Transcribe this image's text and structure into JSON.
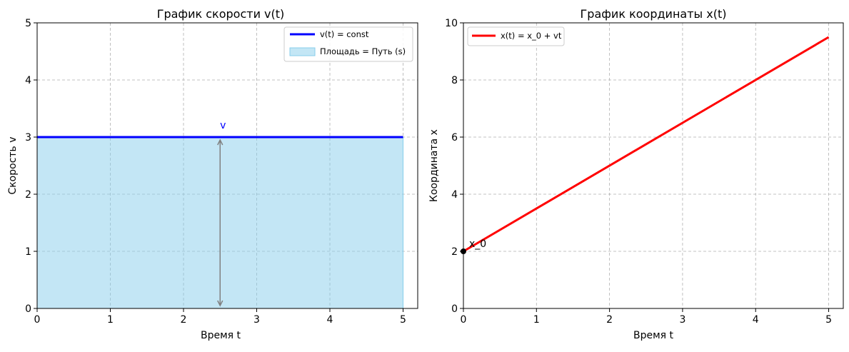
{
  "chart_data": [
    {
      "type": "line",
      "title": "График скорости v(t)",
      "xlabel": "Время t",
      "ylabel": "Скорость v",
      "xlim": [
        0,
        5.2
      ],
      "ylim": [
        0,
        5
      ],
      "xticks": [
        "0",
        "1",
        "2",
        "3",
        "4",
        "5"
      ],
      "yticks": [
        "0",
        "1",
        "2",
        "3",
        "4",
        "5"
      ],
      "grid": true,
      "legend_position": "top-right",
      "series": [
        {
          "name": "v(t) = const",
          "x": [
            0,
            5
          ],
          "y": [
            3,
            3
          ],
          "color": "#0000ff"
        }
      ],
      "area": {
        "name": "Площадь = Путь (s)",
        "x": [
          0,
          5
        ],
        "y": [
          3,
          3
        ],
        "color": "#87ceeb"
      },
      "annotations": [
        {
          "text": "v",
          "x": 2.5,
          "y": 3.2,
          "color": "#0000ff"
        },
        {
          "type": "double-arrow",
          "x": 2.5,
          "y_from": 0,
          "y_to": 3,
          "color": "#808080"
        }
      ]
    },
    {
      "type": "line",
      "title": "График координаты x(t)",
      "xlabel": "Время t",
      "ylabel": "Координата x",
      "xlim": [
        0,
        5.2
      ],
      "ylim": [
        0,
        10
      ],
      "xticks": [
        "0",
        "1",
        "2",
        "3",
        "4",
        "5"
      ],
      "yticks": [
        "0",
        "2",
        "4",
        "6",
        "8",
        "10"
      ],
      "grid": true,
      "legend_position": "top-left",
      "series": [
        {
          "name": "x(t) = x_0 + vt",
          "x": [
            0,
            5
          ],
          "y": [
            2,
            9.5
          ],
          "color": "#ff0000"
        }
      ],
      "points": [
        {
          "x": 0,
          "y": 2,
          "label": "x_0",
          "color": "#000000"
        }
      ]
    }
  ]
}
